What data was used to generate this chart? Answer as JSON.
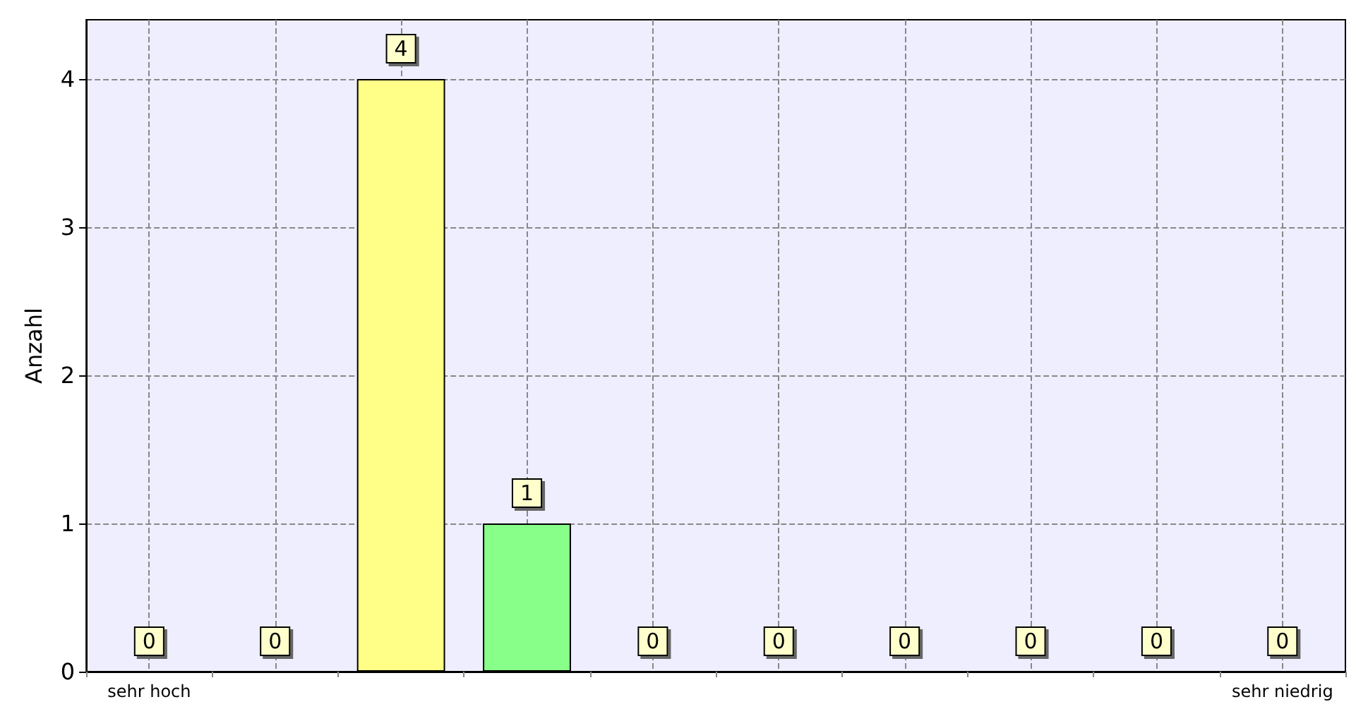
{
  "chart_data": {
    "type": "bar",
    "ylabel": "Anzahl",
    "categories": [
      "sehr hoch",
      null,
      null,
      null,
      null,
      null,
      null,
      null,
      null,
      "sehr niedrig"
    ],
    "values": [
      0,
      0,
      4,
      1,
      0,
      0,
      0,
      0,
      0,
      0
    ],
    "colors": [
      null,
      null,
      "#ffff88",
      "#88ff88",
      null,
      null,
      null,
      null,
      null,
      null
    ],
    "ylim": [
      0,
      4.4
    ],
    "yticks": [
      0,
      1,
      2,
      3,
      4
    ],
    "grid": true,
    "data_labels": true
  }
}
